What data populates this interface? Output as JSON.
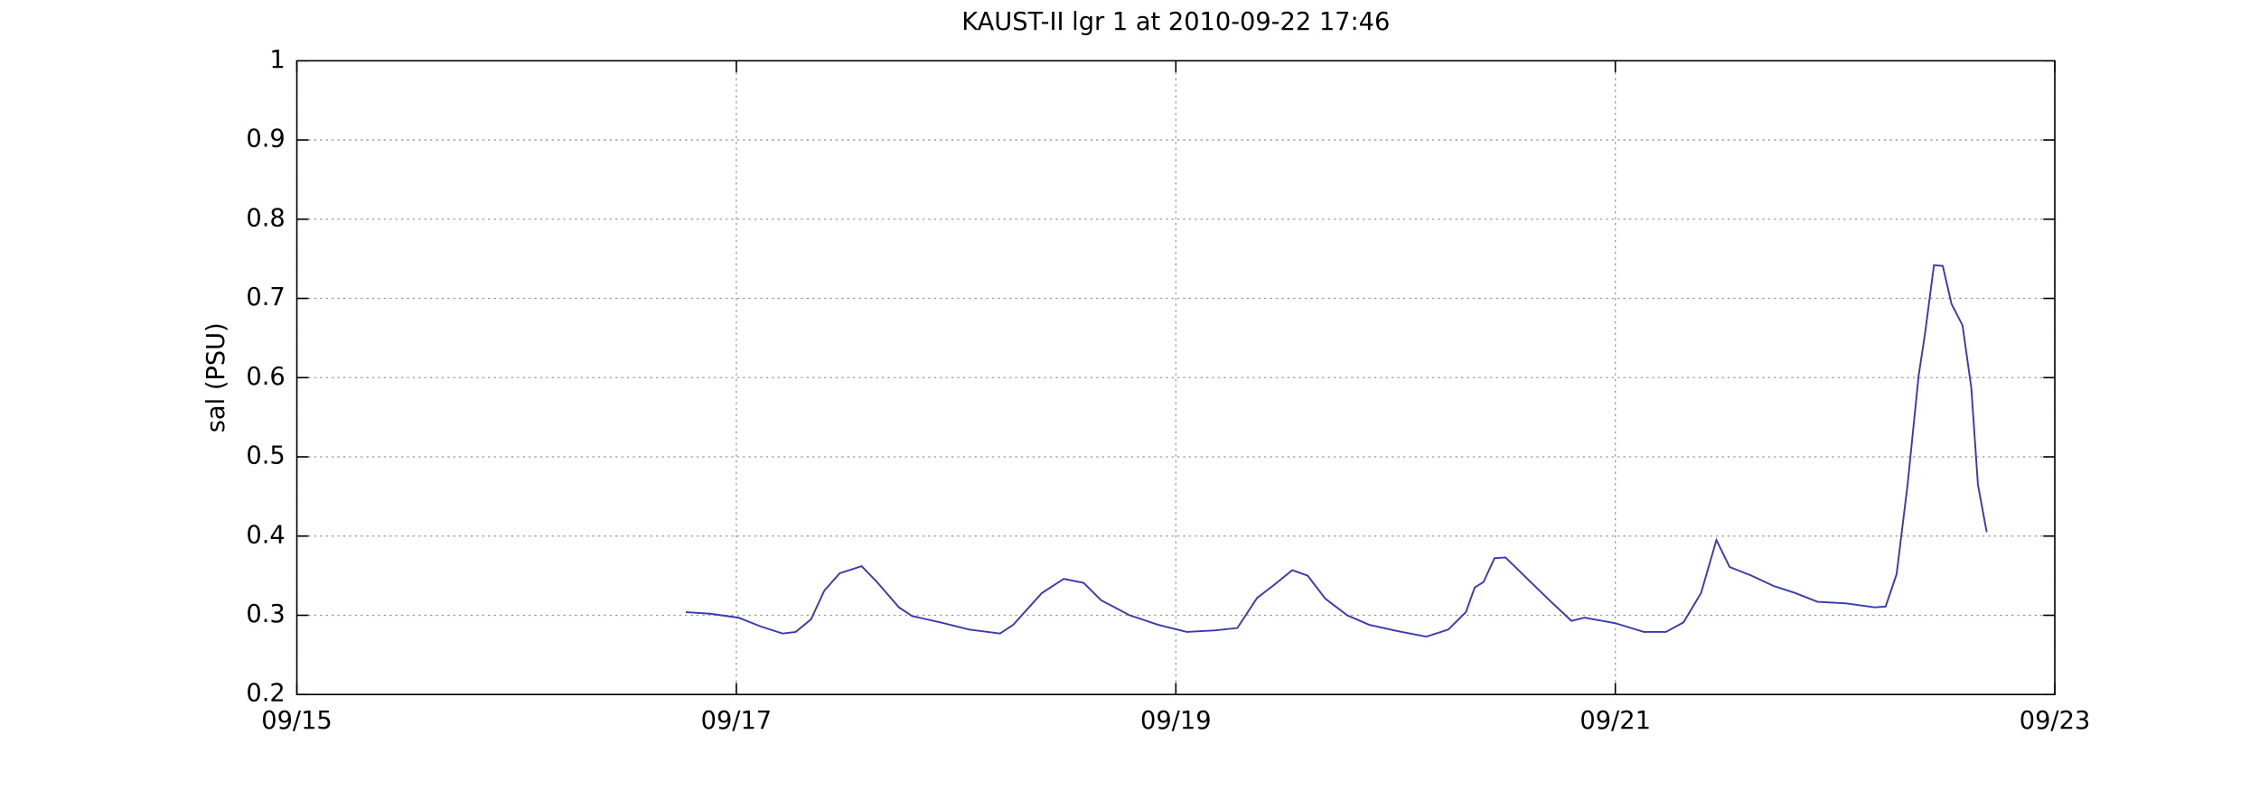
{
  "chart_data": {
    "type": "line",
    "title": "KAUST-II lgr 1 at 2010-09-22 17:46",
    "y_label": "sal (PSU)",
    "xlim": [
      15,
      23
    ],
    "xticks": [
      {
        "value": 15,
        "label": "09/15"
      },
      {
        "value": 17,
        "label": "09/17"
      },
      {
        "value": 19,
        "label": "09/19"
      },
      {
        "value": 21,
        "label": "09/21"
      },
      {
        "value": 23,
        "label": "09/23"
      }
    ],
    "ylim": [
      0.2,
      1
    ],
    "yticks": [
      0.2,
      0.3,
      0.4,
      0.5,
      0.6,
      0.7,
      0.8,
      0.9,
      1
    ],
    "grid": true,
    "x": [
      16.77,
      16.88,
      17.01,
      17.11,
      17.21,
      17.27,
      17.34,
      17.4,
      17.47,
      17.57,
      17.64,
      17.74,
      17.8,
      17.93,
      18.06,
      18.2,
      18.26,
      18.39,
      18.49,
      18.58,
      18.66,
      18.79,
      18.92,
      19.05,
      19.18,
      19.28,
      19.37,
      19.45,
      19.53,
      19.6,
      19.68,
      19.78,
      19.88,
      20.01,
      20.14,
      20.24,
      20.32,
      20.36,
      20.4,
      20.45,
      20.5,
      20.6,
      20.7,
      20.8,
      20.86,
      21.0,
      21.13,
      21.23,
      21.31,
      21.39,
      21.46,
      21.52,
      21.62,
      21.72,
      21.82,
      21.92,
      22.05,
      22.18,
      22.23,
      22.28,
      22.33,
      22.38,
      22.41,
      22.45,
      22.49,
      22.53,
      22.58,
      22.62,
      22.65,
      22.69
    ],
    "series": [
      {
        "color": "#3a3ab0",
        "values": [
          0.304,
          0.302,
          0.297,
          0.286,
          0.277,
          0.279,
          0.295,
          0.331,
          0.353,
          0.362,
          0.342,
          0.31,
          0.299,
          0.291,
          0.282,
          0.277,
          0.288,
          0.328,
          0.346,
          0.341,
          0.319,
          0.3,
          0.288,
          0.279,
          0.281,
          0.284,
          0.322,
          0.339,
          0.357,
          0.35,
          0.321,
          0.3,
          0.288,
          0.28,
          0.273,
          0.282,
          0.304,
          0.335,
          0.342,
          0.372,
          0.373,
          0.346,
          0.319,
          0.293,
          0.297,
          0.29,
          0.279,
          0.279,
          0.291,
          0.328,
          0.395,
          0.361,
          0.35,
          0.337,
          0.328,
          0.317,
          0.315,
          0.31,
          0.311,
          0.352,
          0.465,
          0.602,
          0.657,
          0.742,
          0.741,
          0.693,
          0.666,
          0.587,
          0.465,
          0.405
        ]
      }
    ]
  }
}
